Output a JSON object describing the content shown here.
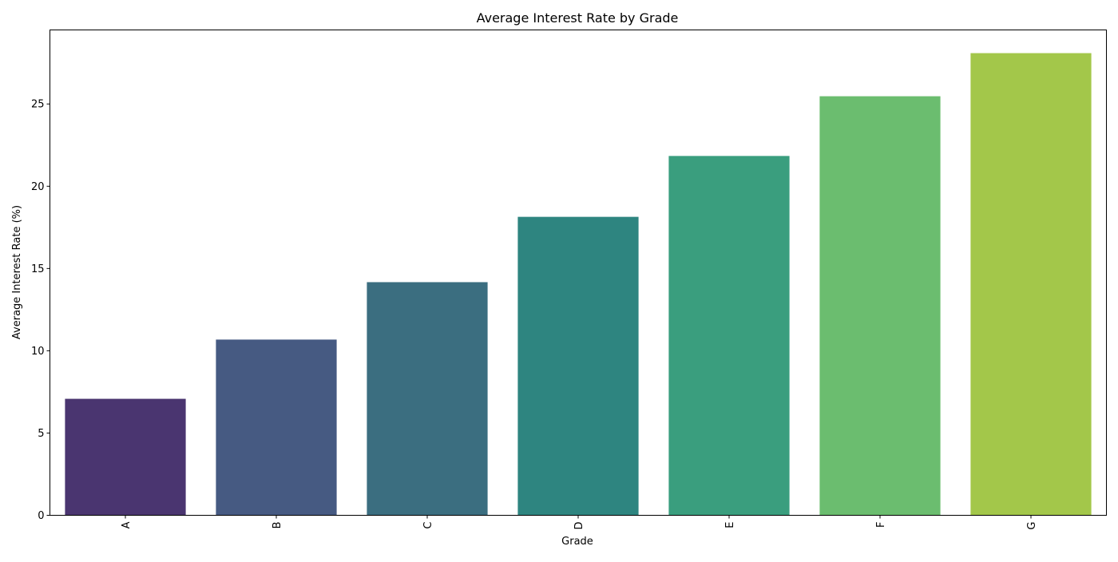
{
  "chart_data": {
    "type": "bar",
    "title": "Average Interest Rate by Grade",
    "xlabel": "Grade",
    "ylabel": "Average Interest Rate (%)",
    "categories": [
      "A",
      "B",
      "C",
      "D",
      "E",
      "F",
      "G"
    ],
    "values": [
      7.08,
      10.68,
      14.17,
      18.14,
      21.84,
      25.47,
      28.09
    ],
    "colors": [
      "#4a3570",
      "#465a82",
      "#3b6e80",
      "#2e8580",
      "#3a9e7e",
      "#6bbd6f",
      "#a3c74a"
    ],
    "yticks": [
      0,
      5,
      10,
      15,
      20,
      25
    ],
    "ylim": [
      0,
      29.5
    ],
    "xtick_rotation": "vertical",
    "grid": false,
    "legend": false
  }
}
